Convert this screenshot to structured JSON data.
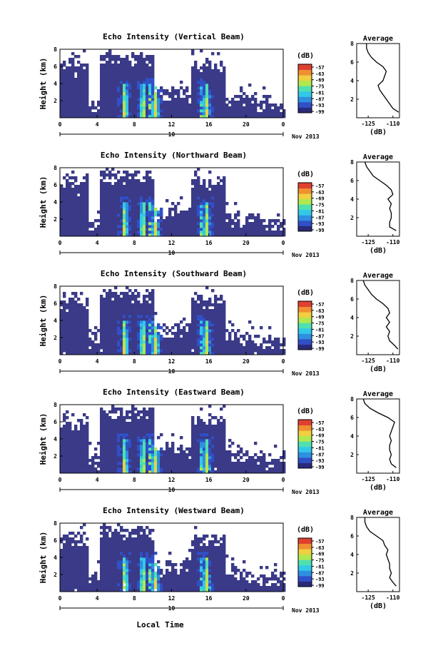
{
  "figure": {
    "xlabel_bottom": "Local Time",
    "date_label": "Nov 2013",
    "day_label": "10",
    "height_label": "Height (km)",
    "colorbar_unit": "(dB)",
    "colorbar_ticks": [
      "-57",
      "-63",
      "-69",
      "-75",
      "-81",
      "-87",
      "-93",
      "-99"
    ],
    "x_ticks": [
      "0",
      "4",
      "8",
      "12",
      "16",
      "20",
      "0"
    ],
    "y_ticks": [
      "2",
      "4",
      "6",
      "8"
    ],
    "avg_title": "Average",
    "avg_xlabel": "(dB)",
    "avg_x_ticks": [
      "-125",
      "-110"
    ],
    "avg_y_ticks": [
      "2",
      "4",
      "6",
      "8"
    ],
    "colors": {
      "cold": "#3a3a88",
      "colormap": [
        "#2a2a7a",
        "#3050c8",
        "#2f8fe0",
        "#32c8e8",
        "#50e0b0",
        "#b0e850",
        "#f0d040",
        "#f09030",
        "#e04030"
      ]
    }
  },
  "chart_data": [
    {
      "type": "heatmap",
      "title": "Echo Intensity (Vertical Beam)",
      "xlabel": "Local Time",
      "ylabel": "Height (km)",
      "xlim": [
        0,
        24
      ],
      "ylim": [
        0,
        8
      ],
      "zlim": [
        -99,
        -57
      ],
      "zlabel": "(dB)",
      "avg_profile": {
        "title": "Average",
        "xlabel": "(dB)",
        "xlim": [
          -132,
          -106
        ],
        "height_km": [
          0.6,
          1.0,
          1.5,
          2.0,
          2.5,
          3.0,
          3.5,
          4.0,
          4.5,
          5.0,
          5.5,
          6.0,
          6.5,
          7.0,
          7.5,
          8.0
        ],
        "db": [
          -106.5,
          -110,
          -112,
          -114,
          -116,
          -118,
          -119,
          -116,
          -115,
          -114,
          -116,
          -120,
          -123,
          -125,
          -126,
          -126
        ]
      }
    },
    {
      "type": "heatmap",
      "title": "Echo Intensity (Northward Beam)",
      "xlabel": "Local Time",
      "ylabel": "Height (km)",
      "xlim": [
        0,
        24
      ],
      "ylim": [
        0,
        8
      ],
      "zlim": [
        -99,
        -57
      ],
      "zlabel": "(dB)",
      "avg_profile": {
        "title": "Average",
        "xlabel": "(dB)",
        "xlim": [
          -132,
          -106
        ],
        "height_km": [
          0.6,
          1.0,
          1.5,
          2.0,
          2.5,
          3.0,
          3.5,
          4.0,
          4.5,
          5.0,
          5.5,
          6.0,
          6.5,
          7.0,
          7.5,
          8.0
        ],
        "db": [
          -108,
          -112,
          -112,
          -111,
          -111,
          -112,
          -111,
          -113,
          -110,
          -111,
          -114,
          -118,
          -122,
          -124,
          -126,
          -127
        ]
      }
    },
    {
      "type": "heatmap",
      "title": "Echo Intensity (Southward Beam)",
      "xlabel": "Local Time",
      "ylabel": "Height (km)",
      "xlim": [
        0,
        24
      ],
      "ylim": [
        0,
        8
      ],
      "zlim": [
        -99,
        -57
      ],
      "zlabel": "(dB)",
      "avg_profile": {
        "title": "Average",
        "xlabel": "(dB)",
        "xlim": [
          -132,
          -106
        ],
        "height_km": [
          0.6,
          1.0,
          1.5,
          2.0,
          2.5,
          3.0,
          3.5,
          4.0,
          4.5,
          5.0,
          5.5,
          6.0,
          6.5,
          7.0,
          7.5,
          8.0
        ],
        "db": [
          -107,
          -109,
          -112,
          -113,
          -112,
          -114,
          -112,
          -114,
          -112,
          -113,
          -116,
          -120,
          -123,
          -125,
          -127,
          -128
        ]
      }
    },
    {
      "type": "heatmap",
      "title": "Echo Intensity (Eastward Beam)",
      "xlabel": "Local Time",
      "ylabel": "Height (km)",
      "xlim": [
        0,
        24
      ],
      "ylim": [
        0,
        8
      ],
      "zlim": [
        -99,
        -57
      ],
      "zlabel": "(dB)",
      "avg_profile": {
        "title": "Average",
        "xlabel": "(dB)",
        "xlim": [
          -132,
          -106
        ],
        "height_km": [
          0.6,
          1.0,
          1.5,
          2.0,
          2.5,
          3.0,
          3.5,
          4.0,
          4.5,
          5.0,
          5.5,
          6.0,
          6.5,
          7.0,
          7.5,
          8.0
        ],
        "db": [
          -108,
          -111,
          -112,
          -111,
          -112,
          -112,
          -111,
          -112,
          -111,
          -110,
          -109,
          -113,
          -119,
          -124,
          -127,
          -128
        ]
      }
    },
    {
      "type": "heatmap",
      "title": "Echo Intensity (Westward Beam)",
      "xlabel": "Local Time",
      "ylabel": "Height (km)",
      "xlim": [
        0,
        24
      ],
      "ylim": [
        0,
        8
      ],
      "zlim": [
        -99,
        -57
      ],
      "zlabel": "(dB)",
      "avg_profile": {
        "title": "Average",
        "xlabel": "(dB)",
        "xlim": [
          -132,
          -106
        ],
        "height_km": [
          0.6,
          1.0,
          1.5,
          2.0,
          2.5,
          3.0,
          3.5,
          4.0,
          4.5,
          5.0,
          5.5,
          6.0,
          6.5,
          7.0,
          7.5,
          8.0
        ],
        "db": [
          -108,
          -110,
          -112,
          -111,
          -112,
          -112,
          -113,
          -114,
          -113,
          -115,
          -116,
          -120,
          -124,
          -126,
          -127,
          -127
        ]
      }
    }
  ]
}
